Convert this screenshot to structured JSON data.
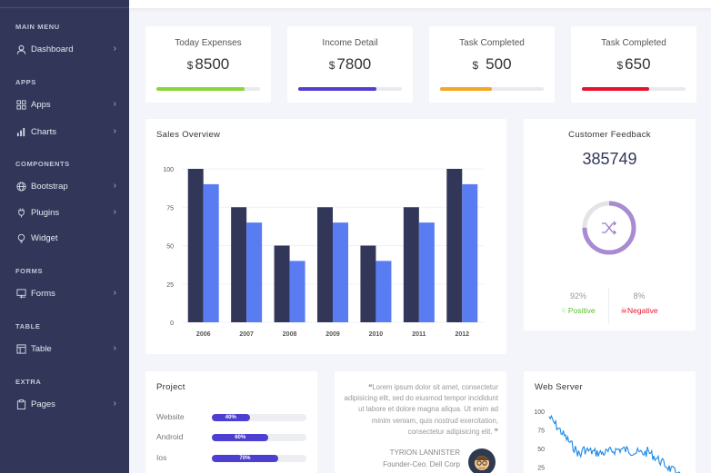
{
  "sidebar": {
    "sections": {
      "main": "MAIN MENU",
      "apps": "APPS",
      "components": "COMPONENTS",
      "forms": "FORMS",
      "table": "TABLE",
      "extra": "EXTRA"
    },
    "items": [
      {
        "label": "Dashboard",
        "icon": "user-icon"
      },
      {
        "label": "Apps",
        "icon": "grid-icon"
      },
      {
        "label": "Charts",
        "icon": "bar-chart-icon"
      },
      {
        "label": "Bootstrap",
        "icon": "globe-icon"
      },
      {
        "label": "Plugins",
        "icon": "plug-icon"
      },
      {
        "label": "Widget",
        "icon": "bulb-icon"
      },
      {
        "label": "Forms",
        "icon": "form-icon"
      },
      {
        "label": "Table",
        "icon": "table-icon"
      },
      {
        "label": "Pages",
        "icon": "clipboard-icon"
      }
    ]
  },
  "stats": [
    {
      "label": "Today Expenses",
      "currency": "$",
      "value": "8500",
      "progress": 0.85,
      "color": "#8bd53a"
    },
    {
      "label": "Income Detail",
      "currency": "$",
      "value": "7800",
      "progress": 0.75,
      "color": "#5140d0"
    },
    {
      "label": "Task Completed",
      "currency": "$",
      "value": "500",
      "progress": 0.5,
      "color": "#f6a625"
    },
    {
      "label": "Task Completed",
      "currency": "$",
      "value": "650",
      "progress": 0.65,
      "color": "#e8112d"
    }
  ],
  "sales": {
    "title": "Sales Overview"
  },
  "chart_data": {
    "type": "bar",
    "categories": [
      "2006",
      "2007",
      "2008",
      "2009",
      "2010",
      "2011",
      "2012"
    ],
    "series": [
      {
        "values": [
          100,
          75,
          50,
          75,
          50,
          75,
          100
        ],
        "color": "#32375a"
      },
      {
        "values": [
          90,
          65,
          40,
          65,
          40,
          65,
          90
        ],
        "color": "#5a7cf3"
      }
    ],
    "yticks": [
      "100",
      "75",
      "50",
      "25",
      "0"
    ],
    "ylim": [
      0,
      100
    ],
    "title": "Sales Overview"
  },
  "feedback": {
    "title": "Customer Feedback",
    "value": "385749",
    "positive_pct": "92%",
    "positive_label": "Positive",
    "negative_pct": "8%",
    "negative_label": "Negative",
    "ring_fraction": 0.75,
    "ring_color": "#a98bd2"
  },
  "project": {
    "title": "Project",
    "rows": [
      {
        "label": "Website",
        "pct": "40%",
        "value": 0.4
      },
      {
        "label": "Android",
        "pct": "60%",
        "value": 0.6
      },
      {
        "label": "Ios",
        "pct": "70%",
        "value": 0.7
      }
    ]
  },
  "quote": {
    "text": "Lorem ipsum dolor sit amet, consectetur adipisicing elit, sed do eiusmod tempor incididunt ut labore et dolore magna aliqua. Ut enim ad minim veniam, quis nostrud exercitation, consectetur adipisicing elit.",
    "author": "TYRION LANNISTER",
    "role": "Founder-Ceo. Dell Corp"
  },
  "webserver": {
    "title": "Web Server",
    "yticks": [
      "100",
      "75",
      "50",
      "25"
    ]
  }
}
